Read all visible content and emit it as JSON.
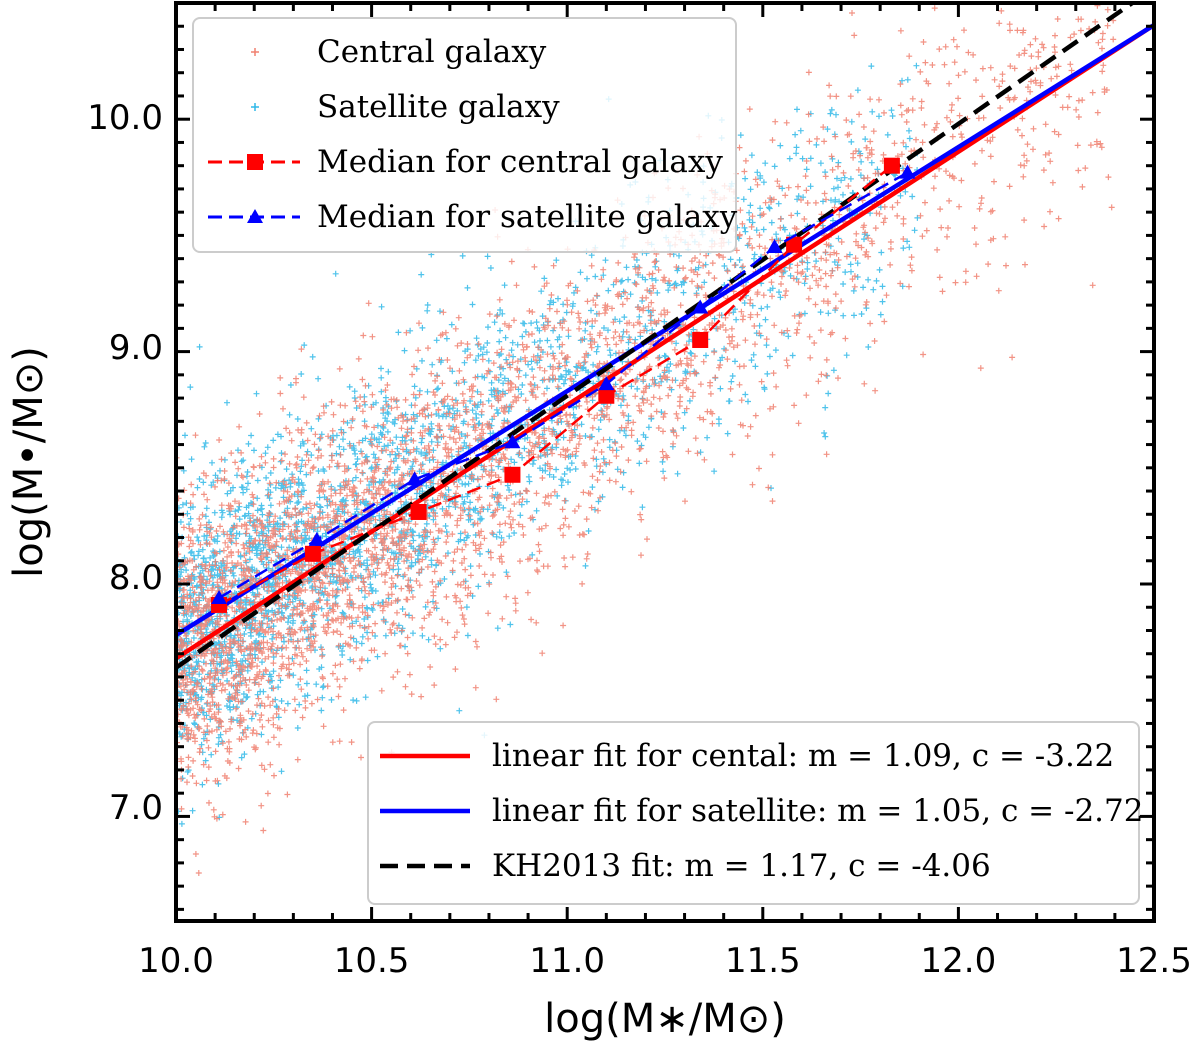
{
  "chart_data": {
    "type": "scatter",
    "xlabel": "log(M∗/M⊙)",
    "ylabel": "log(M•/M⊙)",
    "xlim": [
      10.0,
      12.5
    ],
    "ylim": [
      6.55,
      10.5
    ],
    "xticks": [
      10.0,
      10.5,
      11.0,
      11.5,
      12.0,
      12.5
    ],
    "xtick_labels": [
      "10.0",
      "10.5",
      "11.0",
      "11.5",
      "12.0",
      "12.5"
    ],
    "yticks": [
      7.0,
      8.0,
      9.0,
      10.0
    ],
    "ytick_labels": [
      "7.0",
      "8.0",
      "9.0",
      "10.0"
    ],
    "grid": false,
    "legend_top": {
      "placement": "top-left",
      "entries": [
        {
          "label": "Central galaxy",
          "color": "#f08070",
          "marker": "plus"
        },
        {
          "label": "Satellite galaxy",
          "color": "#30b8e8",
          "marker": "plus"
        },
        {
          "label": "Median for central galaxy",
          "color": "#ff0000",
          "marker": "square",
          "line": "dashed"
        },
        {
          "label": "Median for satellite galaxy",
          "color": "#0000ff",
          "marker": "triangle",
          "line": "dashed"
        }
      ]
    },
    "legend_bottom": {
      "placement": "lower-right",
      "entries": [
        {
          "label": "linear fit for cental: m = 1.09, c = -3.22",
          "color": "#ff0000",
          "line": "solid"
        },
        {
          "label": "linear fit for satellite: m = 1.05, c = -2.72",
          "color": "#0000ff",
          "line": "solid"
        },
        {
          "label": "KH2013 fit: m = 1.17, c = -4.06",
          "color": "#000000",
          "line": "dashed"
        }
      ]
    },
    "series": [
      {
        "name": "Median for central galaxy",
        "color": "#ff0000",
        "x": [
          10.11,
          10.35,
          10.62,
          10.86,
          11.1,
          11.34,
          11.58,
          11.83
        ],
        "y": [
          7.91,
          8.13,
          8.31,
          8.47,
          8.81,
          9.05,
          9.46,
          9.8
        ]
      },
      {
        "name": "Median for satellite galaxy",
        "color": "#0000ff",
        "x": [
          10.11,
          10.36,
          10.61,
          10.86,
          11.1,
          11.34,
          11.53,
          11.87
        ],
        "y": [
          7.94,
          8.19,
          8.45,
          8.61,
          8.86,
          9.19,
          9.45,
          9.77
        ]
      }
    ],
    "fits": [
      {
        "name": "linear fit for cental",
        "m": 1.09,
        "c": -3.22,
        "color": "#ff0000",
        "style": "solid"
      },
      {
        "name": "linear fit for satellite",
        "m": 1.05,
        "c": -2.72,
        "color": "#0000ff",
        "style": "solid"
      },
      {
        "name": "KH2013 fit",
        "m": 1.17,
        "c": -4.06,
        "color": "#000000",
        "style": "dashed"
      }
    ],
    "scatter_clouds": [
      {
        "name": "Satellite galaxy",
        "color": "#30b8e8",
        "n": 2600,
        "x_range": [
          10.0,
          11.9
        ],
        "fit_m": 1.05,
        "fit_c": -2.72,
        "scatter_dex": 0.3,
        "concentration": "low-mass end"
      },
      {
        "name": "Central galaxy",
        "color": "#f08070",
        "n": 3400,
        "x_range": [
          10.0,
          12.4
        ],
        "fit_m": 1.09,
        "fit_c": -3.22,
        "scatter_dex": 0.32,
        "concentration": "low-mass end"
      }
    ]
  }
}
